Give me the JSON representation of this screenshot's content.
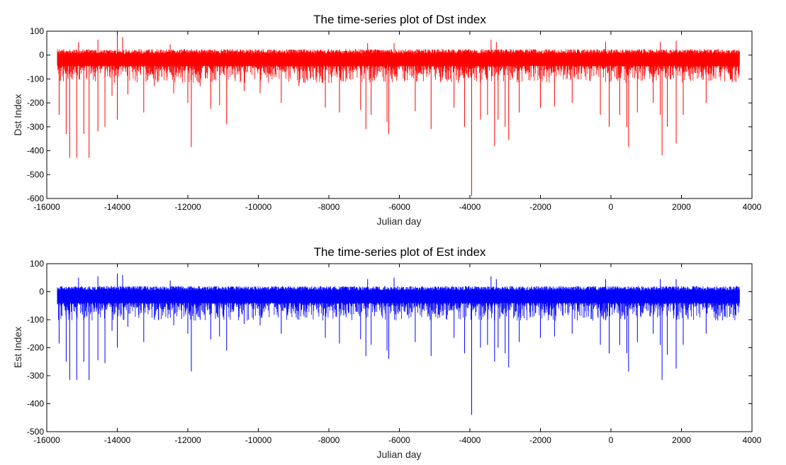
{
  "chart_data": [
    {
      "type": "line",
      "title": "The time-series plot of Dst index",
      "xlabel": "Julian day",
      "ylabel": "Dst Index",
      "xlim": [
        -16000,
        4000
      ],
      "ylim": [
        -600,
        100
      ],
      "xticks": [
        -16000,
        -14000,
        -12000,
        -10000,
        -8000,
        -6000,
        -4000,
        -2000,
        0,
        2000,
        4000
      ],
      "yticks": [
        100,
        0,
        -100,
        -200,
        -300,
        -400,
        -500,
        -600
      ],
      "grid": false,
      "color": "#ff0000",
      "series": [
        {
          "x_start": -15700,
          "x_end": 3650,
          "band_top": 25,
          "band_bottom": -45,
          "spikes": [
            {
              "x": -15650,
              "y": -250
            },
            {
              "x": -15450,
              "y": -330
            },
            {
              "x": -15350,
              "y": -430
            },
            {
              "x": -15150,
              "y": -430
            },
            {
              "x": -14950,
              "y": -330
            },
            {
              "x": -14800,
              "y": -430
            },
            {
              "x": -14550,
              "y": -320
            },
            {
              "x": -14350,
              "y": -300
            },
            {
              "x": -14150,
              "y": -170
            },
            {
              "x": -14000,
              "y": -270
            },
            {
              "x": -13700,
              "y": -165
            },
            {
              "x": -13250,
              "y": -240
            },
            {
              "x": -12950,
              "y": -130
            },
            {
              "x": -12400,
              "y": -160
            },
            {
              "x": -12000,
              "y": -200
            },
            {
              "x": -11900,
              "y": -385
            },
            {
              "x": -11650,
              "y": -130
            },
            {
              "x": -11350,
              "y": -225
            },
            {
              "x": -11100,
              "y": -210
            },
            {
              "x": -10900,
              "y": -290
            },
            {
              "x": -10400,
              "y": -150
            },
            {
              "x": -9950,
              "y": -160
            },
            {
              "x": -9350,
              "y": -200
            },
            {
              "x": -8850,
              "y": -130
            },
            {
              "x": -8100,
              "y": -220
            },
            {
              "x": -7700,
              "y": -240
            },
            {
              "x": -7100,
              "y": -230
            },
            {
              "x": -6950,
              "y": -310
            },
            {
              "x": -6800,
              "y": -250
            },
            {
              "x": -6350,
              "y": -280
            },
            {
              "x": -6300,
              "y": -330
            },
            {
              "x": -5550,
              "y": -235
            },
            {
              "x": -5100,
              "y": -310
            },
            {
              "x": -4450,
              "y": -220
            },
            {
              "x": -4150,
              "y": -300
            },
            {
              "x": -3950,
              "y": -590
            },
            {
              "x": -3700,
              "y": -270
            },
            {
              "x": -3500,
              "y": -250
            },
            {
              "x": -3300,
              "y": -380
            },
            {
              "x": -3200,
              "y": -270
            },
            {
              "x": -3000,
              "y": -300
            },
            {
              "x": -2900,
              "y": -355
            },
            {
              "x": -2600,
              "y": -240
            },
            {
              "x": -2000,
              "y": -220
            },
            {
              "x": -1600,
              "y": -215
            },
            {
              "x": -1100,
              "y": -200
            },
            {
              "x": -300,
              "y": -250
            },
            {
              "x": -50,
              "y": -300
            },
            {
              "x": 250,
              "y": -250
            },
            {
              "x": 450,
              "y": -300
            },
            {
              "x": 500,
              "y": -385
            },
            {
              "x": 750,
              "y": -240
            },
            {
              "x": 1200,
              "y": -200
            },
            {
              "x": 1400,
              "y": -250
            },
            {
              "x": 1450,
              "y": -420
            },
            {
              "x": 1600,
              "y": -300
            },
            {
              "x": 1850,
              "y": -370
            },
            {
              "x": 2050,
              "y": -250
            },
            {
              "x": 2700,
              "y": -200
            },
            {
              "x": 3400,
              "y": -100
            }
          ],
          "peaks": [
            {
              "x": -15100,
              "y": 55
            },
            {
              "x": -14550,
              "y": 65
            },
            {
              "x": -14000,
              "y": 90
            },
            {
              "x": -13850,
              "y": 75
            },
            {
              "x": -12500,
              "y": 45
            },
            {
              "x": -6900,
              "y": 50
            },
            {
              "x": -6150,
              "y": 50
            },
            {
              "x": -3400,
              "y": 65
            },
            {
              "x": -3250,
              "y": 55
            },
            {
              "x": -150,
              "y": 55
            },
            {
              "x": 1400,
              "y": 55
            },
            {
              "x": 1850,
              "y": 60
            }
          ]
        }
      ]
    },
    {
      "type": "line",
      "title": "The time-series plot of Est index",
      "xlabel": "Julian day",
      "ylabel": "Est Index",
      "xlim": [
        -16000,
        4000
      ],
      "ylim": [
        -500,
        100
      ],
      "xticks": [
        -16000,
        -14000,
        -12000,
        -10000,
        -8000,
        -6000,
        -4000,
        -2000,
        0,
        2000,
        4000
      ],
      "yticks": [
        100,
        0,
        -100,
        -200,
        -300,
        -400,
        -500
      ],
      "grid": false,
      "color": "#0000ff",
      "series": [
        {
          "x_start": -15700,
          "x_end": 3650,
          "band_top": 20,
          "band_bottom": -40,
          "spikes": [
            {
              "x": -15650,
              "y": -185
            },
            {
              "x": -15450,
              "y": -250
            },
            {
              "x": -15350,
              "y": -315
            },
            {
              "x": -15150,
              "y": -315
            },
            {
              "x": -14950,
              "y": -250
            },
            {
              "x": -14800,
              "y": -315
            },
            {
              "x": -14550,
              "y": -245
            },
            {
              "x": -14350,
              "y": -255
            },
            {
              "x": -14150,
              "y": -140
            },
            {
              "x": -14000,
              "y": -200
            },
            {
              "x": -13700,
              "y": -125
            },
            {
              "x": -13250,
              "y": -180
            },
            {
              "x": -12950,
              "y": -100
            },
            {
              "x": -12400,
              "y": -120
            },
            {
              "x": -12000,
              "y": -150
            },
            {
              "x": -11900,
              "y": -285
            },
            {
              "x": -11650,
              "y": -100
            },
            {
              "x": -11350,
              "y": -170
            },
            {
              "x": -11100,
              "y": -160
            },
            {
              "x": -10900,
              "y": -210
            },
            {
              "x": -10400,
              "y": -115
            },
            {
              "x": -9950,
              "y": -120
            },
            {
              "x": -9350,
              "y": -150
            },
            {
              "x": -8850,
              "y": -100
            },
            {
              "x": -8100,
              "y": -165
            },
            {
              "x": -7700,
              "y": -185
            },
            {
              "x": -7100,
              "y": -170
            },
            {
              "x": -6950,
              "y": -230
            },
            {
              "x": -6800,
              "y": -190
            },
            {
              "x": -6350,
              "y": -210
            },
            {
              "x": -6300,
              "y": -240
            },
            {
              "x": -5550,
              "y": -180
            },
            {
              "x": -5100,
              "y": -230
            },
            {
              "x": -4450,
              "y": -165
            },
            {
              "x": -4150,
              "y": -220
            },
            {
              "x": -3950,
              "y": -440
            },
            {
              "x": -3700,
              "y": -200
            },
            {
              "x": -3500,
              "y": -190
            },
            {
              "x": -3300,
              "y": -250
            },
            {
              "x": -3200,
              "y": -200
            },
            {
              "x": -3000,
              "y": -220
            },
            {
              "x": -2900,
              "y": -270
            },
            {
              "x": -2600,
              "y": -180
            },
            {
              "x": -2000,
              "y": -165
            },
            {
              "x": -1600,
              "y": -160
            },
            {
              "x": -1100,
              "y": -150
            },
            {
              "x": -300,
              "y": -190
            },
            {
              "x": -50,
              "y": -220
            },
            {
              "x": 250,
              "y": -190
            },
            {
              "x": 450,
              "y": -220
            },
            {
              "x": 500,
              "y": -285
            },
            {
              "x": 750,
              "y": -180
            },
            {
              "x": 1200,
              "y": -150
            },
            {
              "x": 1400,
              "y": -190
            },
            {
              "x": 1450,
              "y": -315
            },
            {
              "x": 1600,
              "y": -225
            },
            {
              "x": 1850,
              "y": -275
            },
            {
              "x": 2050,
              "y": -190
            },
            {
              "x": 2700,
              "y": -150
            },
            {
              "x": 3400,
              "y": -80
            }
          ],
          "peaks": [
            {
              "x": -15100,
              "y": 50
            },
            {
              "x": -14550,
              "y": 55
            },
            {
              "x": -14000,
              "y": 65
            },
            {
              "x": -13850,
              "y": 60
            },
            {
              "x": -12500,
              "y": 40
            },
            {
              "x": -6900,
              "y": 45
            },
            {
              "x": -6150,
              "y": 50
            },
            {
              "x": -3400,
              "y": 55
            },
            {
              "x": -3250,
              "y": 45
            },
            {
              "x": -150,
              "y": 45
            },
            {
              "x": 1400,
              "y": 45
            },
            {
              "x": 1850,
              "y": 45
            }
          ]
        }
      ]
    }
  ]
}
